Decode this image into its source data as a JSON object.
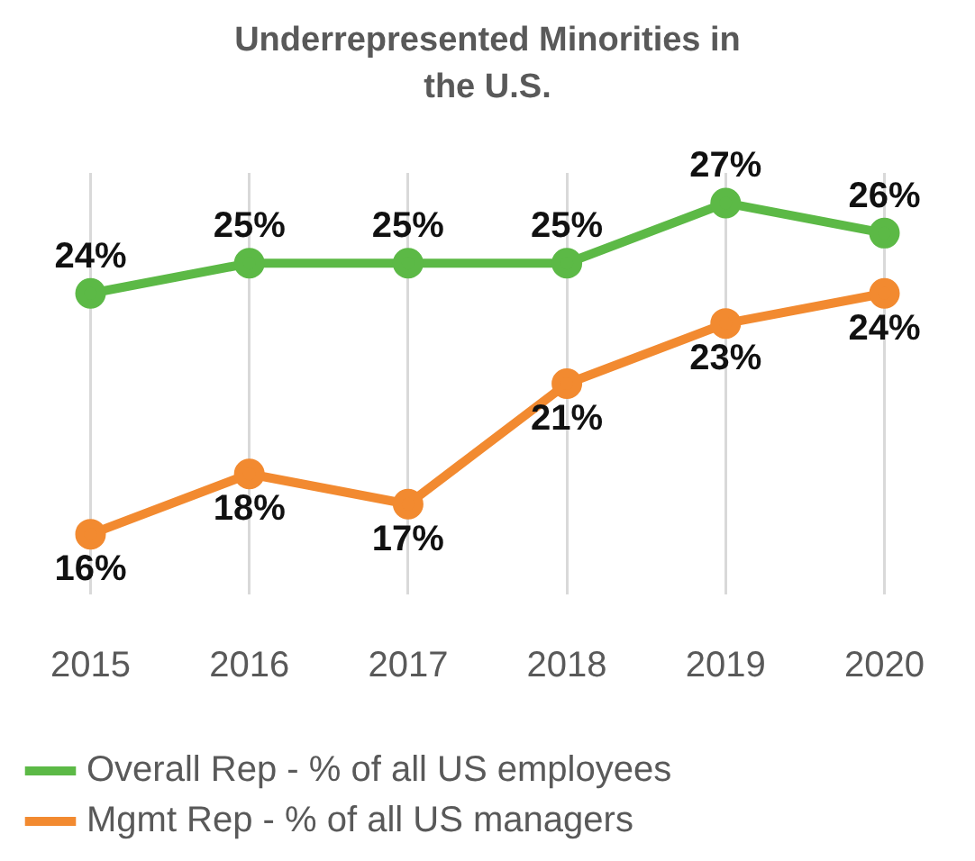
{
  "chart_data": {
    "type": "line",
    "title": "Underrepresented Minorities in the U.S.",
    "categories": [
      "2015",
      "2016",
      "2017",
      "2018",
      "2019",
      "2020"
    ],
    "series": [
      {
        "name": "Overall Rep - % of all US employees",
        "color": "#5cb946",
        "values": [
          24,
          25,
          25,
          25,
          27,
          26
        ],
        "value_labels": [
          "24%",
          "25%",
          "25%",
          "25%",
          "27%",
          "26%"
        ]
      },
      {
        "name": "Mgmt Rep - % of all US managers",
        "color": "#f28a30",
        "values": [
          16,
          18,
          17,
          21,
          23,
          24
        ],
        "value_labels": [
          "16%",
          "18%",
          "17%",
          "21%",
          "23%",
          "24%"
        ]
      }
    ],
    "grid": "x",
    "legend": "bottom",
    "marker": "circle",
    "line_style": "solid",
    "tick_labels": "x"
  }
}
